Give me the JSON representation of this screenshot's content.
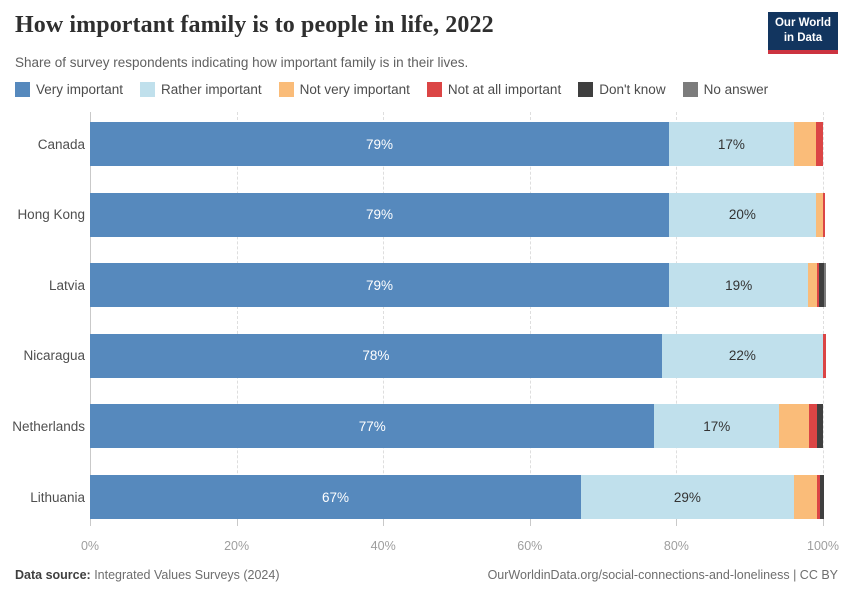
{
  "header": {
    "title": "How important family is to people in life, 2022",
    "subtitle": "Share of survey respondents indicating how important family is in their lives.",
    "logo_line1": "Our World",
    "logo_line2": "in Data"
  },
  "chart_data": {
    "type": "bar",
    "orientation": "horizontal-stacked",
    "title": "How important family is to people in life, 2022",
    "categories": [
      "Canada",
      "Hong Kong",
      "Latvia",
      "Nicaragua",
      "Netherlands",
      "Lithuania"
    ],
    "series": [
      {
        "name": "Very important",
        "color": "#5689bd",
        "label_color": "#ffffff",
        "values": [
          79,
          79,
          79,
          78,
          77,
          67
        ]
      },
      {
        "name": "Rather important",
        "color": "#c0e0ec",
        "label_color": "#333333",
        "values": [
          17,
          20,
          19,
          22,
          17,
          29
        ]
      },
      {
        "name": "Not very important",
        "color": "#fabc79",
        "label_color": "#333333",
        "values": [
          3.1,
          1.0,
          1.2,
          0,
          4.1,
          3.2
        ]
      },
      {
        "name": "Not at all important",
        "color": "#db4545",
        "label_color": "#ffffff",
        "values": [
          0.9,
          0.3,
          0.3,
          0.4,
          1.1,
          0.4
        ]
      },
      {
        "name": "Don't know",
        "color": "#3f3f3f",
        "label_color": "#ffffff",
        "values": [
          0,
          0,
          0.6,
          0,
          0.8,
          0.6
        ]
      },
      {
        "name": "No answer",
        "color": "#7c7c7c",
        "label_color": "#ffffff",
        "values": [
          0,
          0,
          0.3,
          0,
          0,
          0
        ]
      }
    ],
    "value_labels_shown": {
      "Very important": [
        "79%",
        "79%",
        "79%",
        "78%",
        "77%",
        "67%"
      ],
      "Rather important": [
        "17%",
        "20%",
        "19%",
        "22%",
        "17%",
        "29%"
      ]
    },
    "label_threshold": 10,
    "x_ticks": [
      "0%",
      "20%",
      "40%",
      "60%",
      "80%",
      "100%"
    ],
    "x_tick_values": [
      0,
      20,
      40,
      60,
      80,
      100
    ],
    "xlim": [
      0,
      100
    ],
    "grid": true,
    "legend_position": "top"
  },
  "footer": {
    "source_label": "Data source:",
    "source_value": " Integrated Values Surveys (2024)",
    "link": "OurWorldinData.org/social-connections-and-loneliness",
    "license": " | CC BY"
  },
  "colors": {
    "logo_bg": "#12355f",
    "logo_accent": "#cc3340",
    "gridline": "#dedede",
    "axis": "#c9c9c9"
  }
}
